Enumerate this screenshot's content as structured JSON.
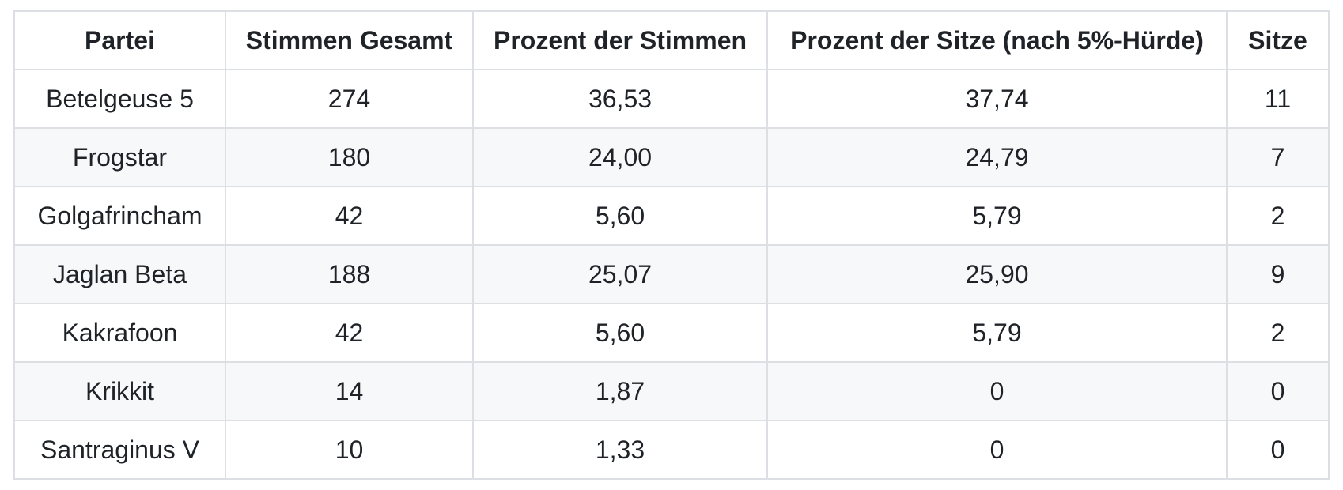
{
  "table": {
    "columns": [
      "Partei",
      "Stimmen Gesamt",
      "Prozent der Stimmen",
      "Prozent der Sitze (nach 5%-Hürde)",
      "Sitze"
    ],
    "rows": [
      [
        "Betelgeuse 5",
        "274",
        "36,53",
        "37,74",
        "11"
      ],
      [
        "Frogstar",
        "180",
        "24,00",
        "24,79",
        "7"
      ],
      [
        "Golgafrincham",
        "42",
        "5,60",
        "5,79",
        "2"
      ],
      [
        "Jaglan Beta",
        "188",
        "25,07",
        "25,90",
        "9"
      ],
      [
        "Kakrafoon",
        "42",
        "5,60",
        "5,79",
        "2"
      ],
      [
        "Krikkit",
        "14",
        "1,87",
        "0",
        "0"
      ],
      [
        "Santraginus V",
        "10",
        "1,33",
        "0",
        "0"
      ]
    ]
  },
  "colors": {
    "page_bg": "#ffffff",
    "row_bg": "#ffffff",
    "stripe_row_bg": "#f6f8fa",
    "border": "#dce0e5",
    "text": "#1f2328"
  }
}
